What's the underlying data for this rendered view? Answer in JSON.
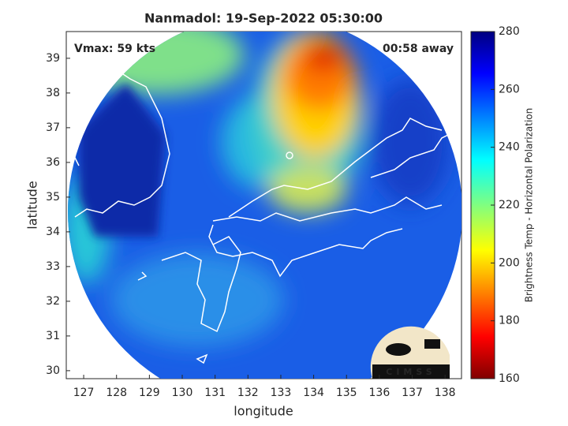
{
  "title": "Nanmadol: 19-Sep-2022 05:30:00",
  "annotations": {
    "vmax": "Vmax: 59 kts",
    "away": "00:58 away"
  },
  "x_axis": {
    "label": "longitude",
    "lim": [
      126.47,
      138.5
    ],
    "ticks": [
      127,
      128,
      129,
      130,
      131,
      132,
      133,
      134,
      135,
      136,
      137,
      138
    ]
  },
  "y_axis": {
    "label": "latitude",
    "lim": [
      29.77,
      39.77
    ],
    "ticks": [
      30,
      31,
      32,
      33,
      34,
      35,
      36,
      37,
      38,
      39
    ]
  },
  "colorbar": {
    "label": "Brightness Temp - Horizontal Polarization",
    "lim": [
      160,
      280
    ],
    "ticks": [
      160,
      180,
      200,
      220,
      240,
      260,
      280
    ]
  },
  "logo": "CIMSS"
}
